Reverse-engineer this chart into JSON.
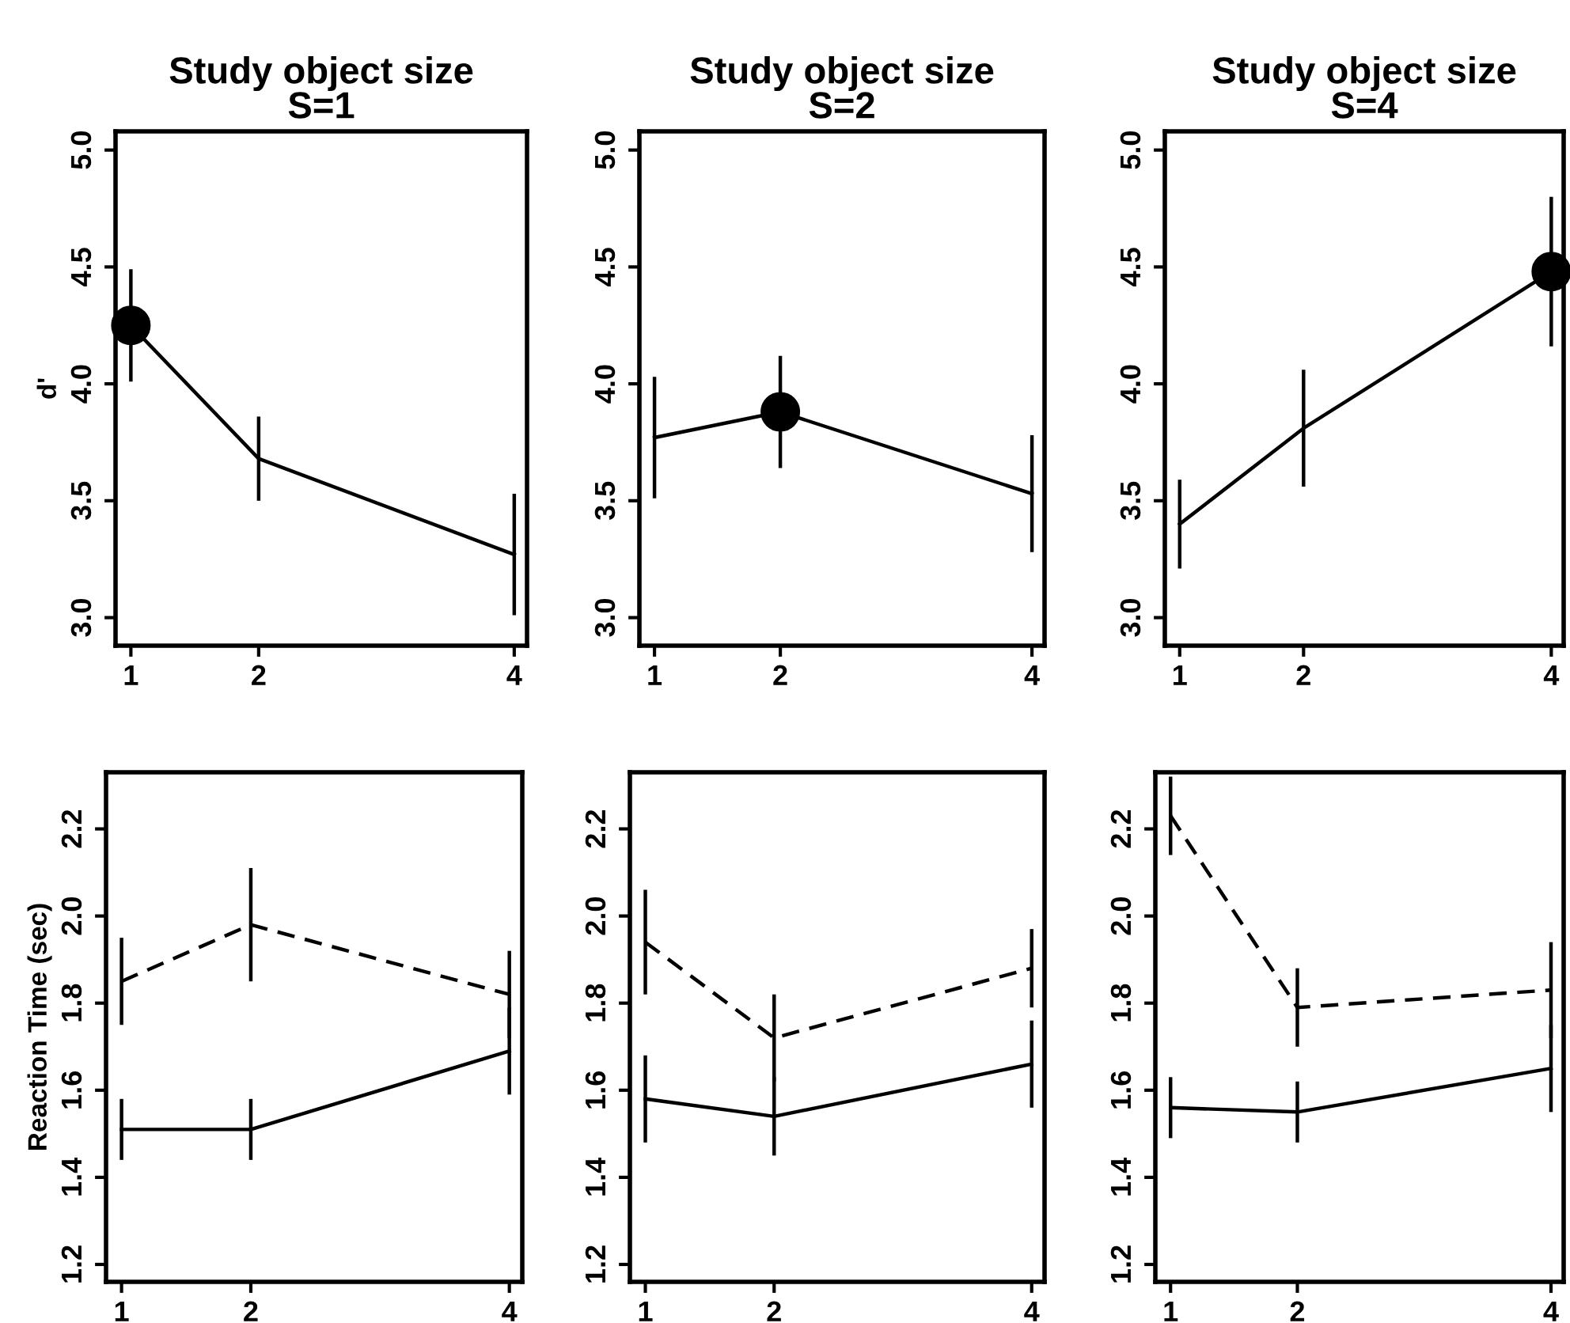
{
  "chart_data": [
    {
      "type": "line",
      "title": "Study object size\nS=1",
      "ylabel": "d'",
      "x": [
        1,
        2,
        4
      ],
      "xlim": [
        0.88,
        4.1
      ],
      "xticks": [
        1,
        2,
        4
      ],
      "ylim": [
        2.88,
        5.08
      ],
      "yticks": [
        {
          "value": 3,
          "label": "3.0"
        },
        3.5,
        {
          "value": 4,
          "label": "4.0"
        },
        4.5,
        {
          "value": 5,
          "label": "5.0"
        }
      ],
      "series": [
        {
          "color": "#000000",
          "line_style": "solid",
          "values": [
            4.25,
            3.68,
            3.27
          ],
          "errors": [
            0.24,
            0.18,
            0.26
          ]
        },
        {
          "type": "scatter",
          "marker": "circle",
          "color": "#000000",
          "x": [
            1
          ],
          "values": [
            4.25
          ]
        }
      ]
    },
    {
      "type": "line",
      "title": "Study object size\nS=2",
      "x": [
        1,
        2,
        4
      ],
      "xlim": [
        0.88,
        4.1
      ],
      "xticks": [
        1,
        2,
        4
      ],
      "ylim": [
        2.88,
        5.08
      ],
      "yticks": [
        {
          "value": 3,
          "label": "3.0"
        },
        3.5,
        {
          "value": 4,
          "label": "4.0"
        },
        4.5,
        {
          "value": 5,
          "label": "5.0"
        }
      ],
      "series": [
        {
          "color": "#000000",
          "line_style": "solid",
          "values": [
            3.77,
            3.88,
            3.53
          ],
          "errors": [
            0.26,
            0.24,
            0.25
          ]
        },
        {
          "type": "scatter",
          "marker": "circle",
          "color": "#000000",
          "x": [
            2
          ],
          "values": [
            3.88
          ]
        }
      ]
    },
    {
      "type": "line",
      "title": "Study object size\nS=4",
      "x": [
        1,
        2,
        4
      ],
      "xlim": [
        0.88,
        4.1
      ],
      "xticks": [
        1,
        2,
        4
      ],
      "ylim": [
        2.88,
        5.08
      ],
      "yticks": [
        {
          "value": 3,
          "label": "3.0"
        },
        3.5,
        {
          "value": 4,
          "label": "4.0"
        },
        4.5,
        {
          "value": 5,
          "label": "5.0"
        }
      ],
      "series": [
        {
          "color": "#000000",
          "line_style": "solid",
          "values": [
            3.4,
            3.81,
            4.48
          ],
          "errors": [
            0.19,
            0.25,
            0.32
          ]
        },
        {
          "type": "scatter",
          "marker": "circle",
          "color": "#000000",
          "x": [
            4
          ],
          "values": [
            4.48
          ]
        }
      ]
    },
    {
      "type": "line",
      "ylabel": "Reaction Time (sec)",
      "x": [
        1,
        2,
        4
      ],
      "xlim": [
        0.88,
        4.1
      ],
      "xticks": [
        1,
        2,
        4
      ],
      "ylim": [
        1.16,
        2.33
      ],
      "yticks": [
        1.2,
        1.4,
        1.6,
        1.8,
        {
          "value": 2,
          "label": "2.0"
        },
        2.2
      ],
      "series": [
        {
          "color": "#000000",
          "line_style": "dashed",
          "values": [
            1.85,
            1.98,
            1.82
          ],
          "errors": [
            0.1,
            0.13,
            0.1
          ]
        },
        {
          "color": "#000000",
          "line_style": "solid",
          "values": [
            1.51,
            1.51,
            1.69
          ],
          "errors": [
            0.07,
            0.07,
            0.1
          ]
        }
      ]
    },
    {
      "type": "line",
      "x": [
        1,
        2,
        4
      ],
      "xlim": [
        0.88,
        4.1
      ],
      "xticks": [
        1,
        2,
        4
      ],
      "ylim": [
        1.16,
        2.33
      ],
      "yticks": [
        1.2,
        1.4,
        1.6,
        1.8,
        {
          "value": 2,
          "label": "2.0"
        },
        2.2
      ],
      "series": [
        {
          "color": "#000000",
          "line_style": "dashed",
          "values": [
            1.94,
            1.72,
            1.88
          ],
          "errors": [
            0.12,
            0.1,
            0.09
          ]
        },
        {
          "color": "#000000",
          "line_style": "solid",
          "values": [
            1.58,
            1.54,
            1.66
          ],
          "errors": [
            0.1,
            0.09,
            0.1
          ]
        }
      ]
    },
    {
      "type": "line",
      "x": [
        1,
        2,
        4
      ],
      "xlim": [
        0.88,
        4.1
      ],
      "xticks": [
        1,
        2,
        4
      ],
      "ylim": [
        1.16,
        2.33
      ],
      "yticks": [
        1.2,
        1.4,
        1.6,
        1.8,
        {
          "value": 2,
          "label": "2.0"
        },
        2.2
      ],
      "series": [
        {
          "color": "#000000",
          "line_style": "dashed",
          "values": [
            2.23,
            1.79,
            1.83
          ],
          "errors": [
            0.09,
            0.09,
            0.11
          ]
        },
        {
          "color": "#000000",
          "line_style": "solid",
          "values": [
            1.56,
            1.55,
            1.65
          ],
          "errors": [
            0.07,
            0.07,
            0.1
          ]
        }
      ]
    }
  ]
}
